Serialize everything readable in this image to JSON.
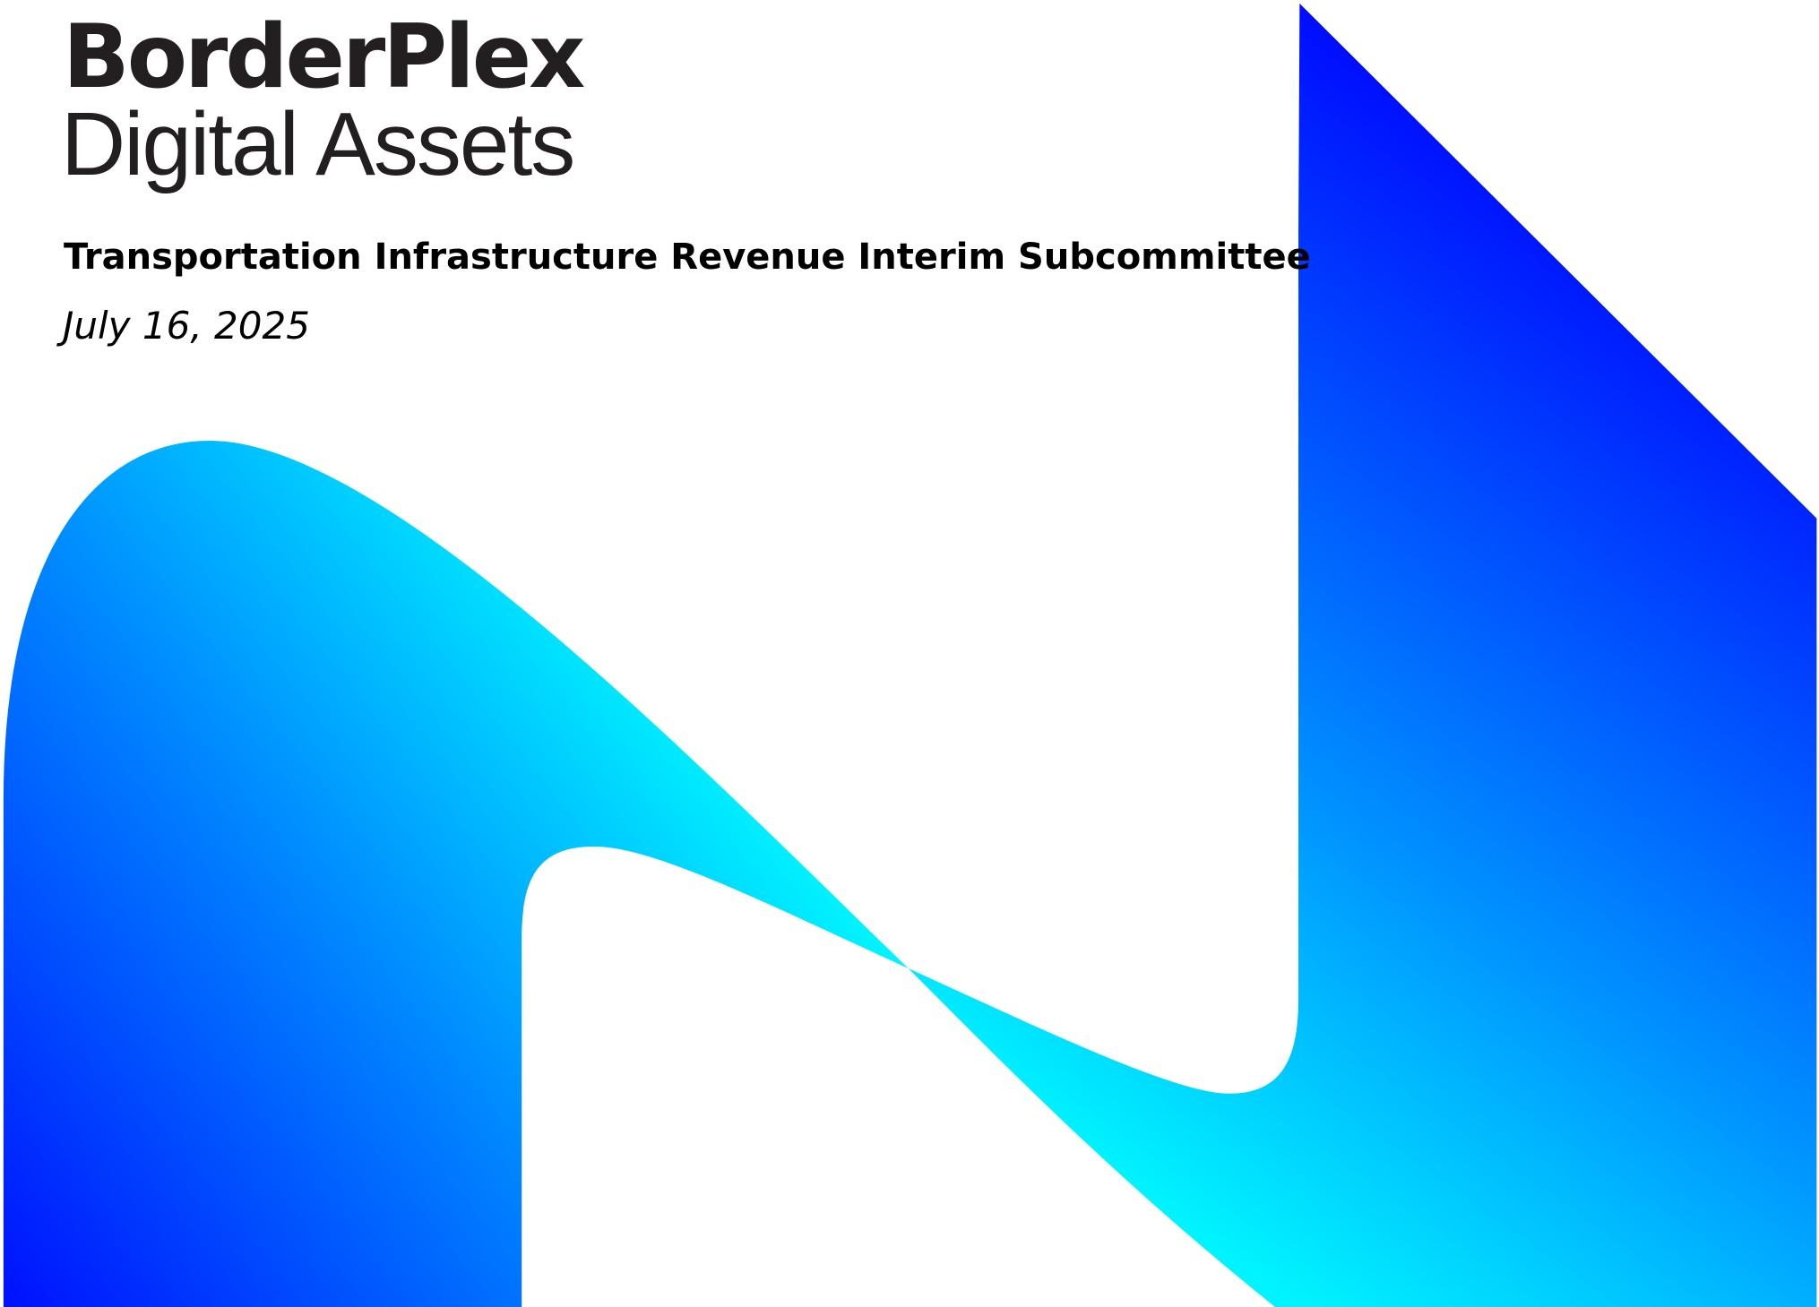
{
  "logo": {
    "line1": "BorderPlex",
    "line2": "Digital Assets"
  },
  "title": "Transportation Infrastructure Revenue Interim Subcommittee",
  "date": "July 16, 2025"
}
